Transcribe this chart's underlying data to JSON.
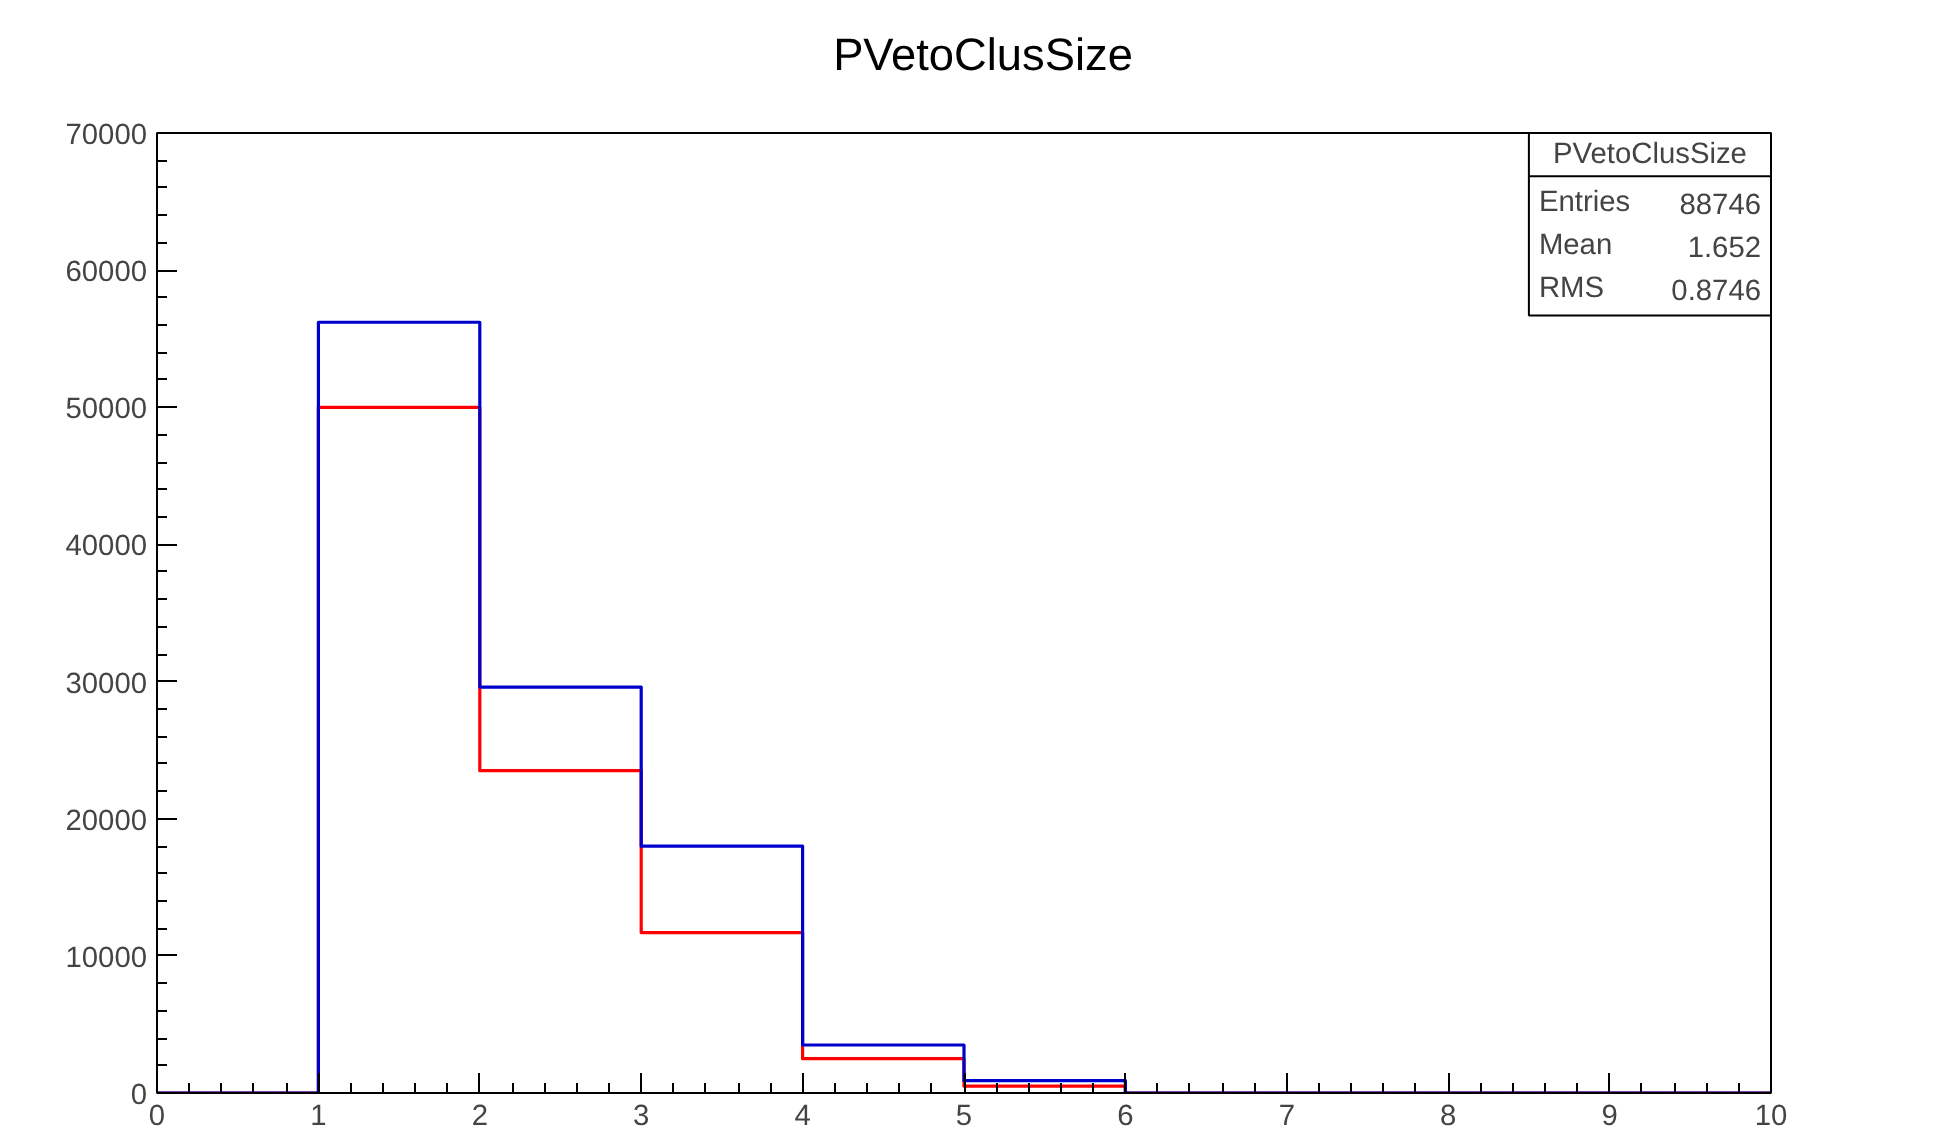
{
  "chart_data": {
    "type": "histogram",
    "title": "PVetoClusSize",
    "bins": [
      0,
      1,
      2,
      3,
      4,
      5,
      6,
      7,
      8,
      9,
      10
    ],
    "series": [
      {
        "color": "#ff0000",
        "values": [
          0,
          50000,
          23500,
          11700,
          2500,
          500,
          0,
          0,
          0,
          0
        ]
      },
      {
        "color": "#0000cc",
        "values": [
          0,
          56200,
          29600,
          18000,
          3500,
          900,
          0,
          0,
          0,
          0
        ]
      }
    ],
    "xlim": [
      0,
      10
    ],
    "xticks": [
      0,
      1,
      2,
      3,
      4,
      5,
      6,
      7,
      8,
      9,
      10
    ],
    "ylim": [
      0,
      70000
    ],
    "yticks": [
      0,
      10000,
      20000,
      30000,
      40000,
      50000,
      60000,
      70000
    ],
    "grid": false,
    "annotations": [
      "PVetoClusSize",
      "Entries",
      "88746",
      "Mean",
      "1.652",
      "RMS",
      "0.8746"
    ]
  }
}
